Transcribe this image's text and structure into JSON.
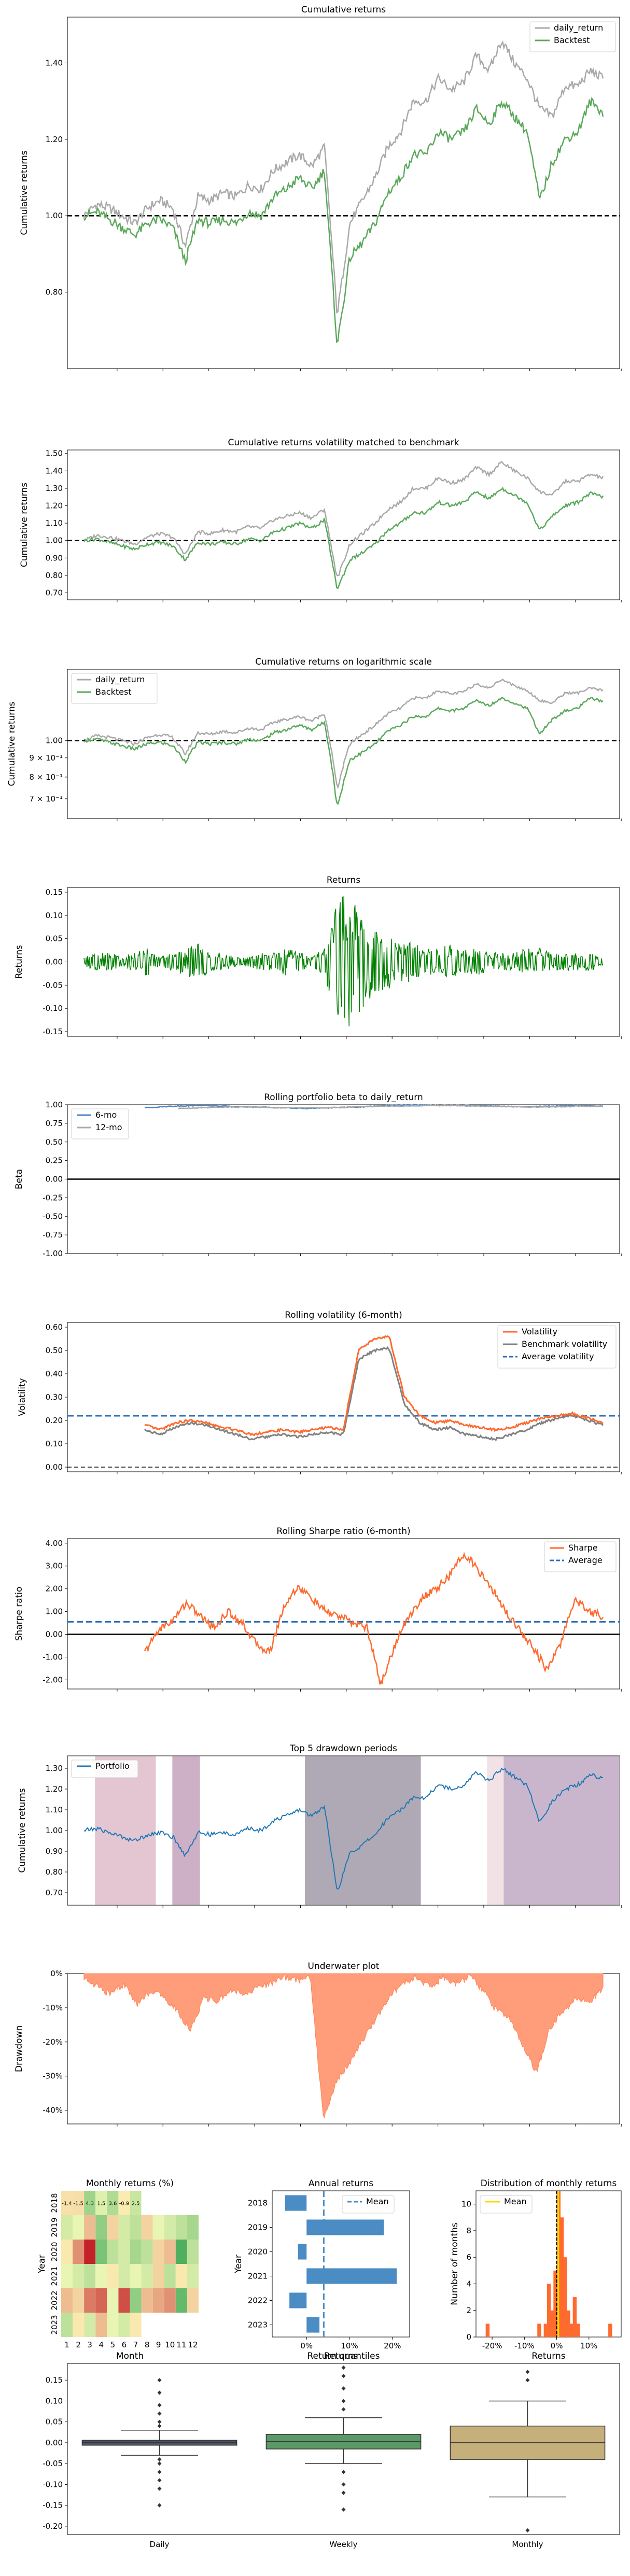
{
  "chart_data": [
    {
      "type": "line",
      "title": "Cumulative returns",
      "ylabel": "Cumulative returns",
      "yticks": [
        "0.80",
        "1.00",
        "1.20",
        "1.40"
      ],
      "ylim": [
        0.6,
        1.52
      ],
      "refline": 1.0,
      "legend_position": "top-right",
      "series": [
        {
          "name": "daily_return",
          "color": "#a9a9a9",
          "values": [
            1.0,
            1.03,
            1.02,
            1.0,
            0.98,
            1.02,
            1.04,
            1.02,
            0.92,
            1.05,
            1.04,
            1.06,
            1.05,
            1.08,
            1.07,
            1.12,
            1.14,
            1.16,
            1.13,
            1.18,
            0.74,
            0.98,
            1.04,
            1.1,
            1.18,
            1.22,
            1.3,
            1.3,
            1.36,
            1.33,
            1.35,
            1.42,
            1.38,
            1.46,
            1.4,
            1.36,
            1.28,
            1.26,
            1.34,
            1.34,
            1.38,
            1.36
          ]
        },
        {
          "name": "Backtest",
          "color": "#5aa95a",
          "values": [
            1.0,
            1.01,
            0.99,
            0.97,
            0.95,
            0.98,
            0.99,
            0.97,
            0.88,
            0.99,
            0.98,
            0.99,
            0.98,
            1.01,
            1.0,
            1.05,
            1.07,
            1.1,
            1.07,
            1.12,
            0.66,
            0.89,
            0.93,
            0.98,
            1.06,
            1.1,
            1.16,
            1.16,
            1.22,
            1.2,
            1.22,
            1.28,
            1.24,
            1.3,
            1.26,
            1.22,
            1.04,
            1.14,
            1.2,
            1.22,
            1.3,
            1.27
          ]
        }
      ]
    },
    {
      "type": "line",
      "title": "Cumulative returns volatility matched to benchmark",
      "ylabel": "Cumulative returns",
      "yticks": [
        "0.70",
        "0.80",
        "0.90",
        "1.00",
        "1.10",
        "1.20",
        "1.30",
        "1.40",
        "1.50"
      ],
      "ylim": [
        0.66,
        1.52
      ],
      "refline": 1.0,
      "series": [
        {
          "name": "daily_return",
          "color": "#a9a9a9",
          "values": [
            1.0,
            1.03,
            1.02,
            1.0,
            0.98,
            1.02,
            1.04,
            1.02,
            0.92,
            1.05,
            1.04,
            1.06,
            1.05,
            1.08,
            1.07,
            1.12,
            1.14,
            1.16,
            1.13,
            1.18,
            0.78,
            0.98,
            1.04,
            1.1,
            1.18,
            1.22,
            1.3,
            1.3,
            1.36,
            1.33,
            1.35,
            1.42,
            1.38,
            1.45,
            1.4,
            1.36,
            1.28,
            1.26,
            1.34,
            1.34,
            1.38,
            1.36
          ]
        },
        {
          "name": "Backtest",
          "color": "#5aa95a",
          "values": [
            1.0,
            1.01,
            0.99,
            0.97,
            0.95,
            0.98,
            0.99,
            0.97,
            0.89,
            0.99,
            0.98,
            0.99,
            0.98,
            1.01,
            1.0,
            1.05,
            1.07,
            1.1,
            1.07,
            1.12,
            0.72,
            0.89,
            0.93,
            0.98,
            1.06,
            1.1,
            1.16,
            1.16,
            1.22,
            1.2,
            1.22,
            1.28,
            1.24,
            1.3,
            1.26,
            1.22,
            1.06,
            1.14,
            1.2,
            1.22,
            1.27,
            1.25
          ]
        }
      ]
    },
    {
      "type": "line",
      "title": "Cumulative returns on logarithmic scale",
      "ylabel": "Cumulative returns",
      "yticks": [
        "1.00",
        "9 × 10⁻¹",
        "8 × 10⁻¹",
        "7 × 10⁻¹"
      ],
      "yscale": "log",
      "ylim": [
        0.62,
        1.55
      ],
      "refline": 1.0,
      "legend_position": "top-left",
      "series": [
        {
          "name": "daily_return",
          "color": "#a9a9a9",
          "values": [
            1.0,
            1.03,
            1.02,
            1.0,
            0.98,
            1.02,
            1.04,
            1.02,
            0.92,
            1.05,
            1.04,
            1.06,
            1.05,
            1.08,
            1.07,
            1.12,
            1.14,
            1.16,
            1.13,
            1.18,
            0.74,
            0.98,
            1.04,
            1.1,
            1.18,
            1.22,
            1.3,
            1.3,
            1.36,
            1.33,
            1.35,
            1.42,
            1.38,
            1.46,
            1.4,
            1.36,
            1.28,
            1.26,
            1.34,
            1.34,
            1.38,
            1.36
          ]
        },
        {
          "name": "Backtest",
          "color": "#5aa95a",
          "values": [
            1.0,
            1.01,
            0.99,
            0.97,
            0.95,
            0.98,
            0.99,
            0.97,
            0.88,
            0.99,
            0.98,
            0.99,
            0.98,
            1.01,
            1.0,
            1.05,
            1.07,
            1.1,
            1.07,
            1.12,
            0.66,
            0.89,
            0.93,
            0.98,
            1.06,
            1.1,
            1.16,
            1.16,
            1.22,
            1.2,
            1.22,
            1.28,
            1.24,
            1.3,
            1.26,
            1.22,
            1.04,
            1.14,
            1.2,
            1.22,
            1.3,
            1.27
          ]
        }
      ]
    },
    {
      "type": "line",
      "title": "Returns",
      "ylabel": "Returns",
      "yticks": [
        "0.15",
        "0.10",
        "0.05",
        "0.00",
        "-0.05",
        "-0.10",
        "-0.15"
      ],
      "ylim": [
        -0.16,
        0.16
      ],
      "series": [
        {
          "name": "Returns",
          "color": "#008000",
          "values": [
            0.01,
            -0.02,
            0.02,
            -0.01,
            0.02,
            -0.03,
            0.01,
            -0.02,
            0.03,
            -0.04,
            0.02,
            -0.02,
            0.01,
            -0.01,
            0.02,
            -0.02,
            0.03,
            -0.02,
            0.01,
            -0.03,
            0.14,
            -0.15,
            0.1,
            -0.08,
            0.06,
            -0.05,
            0.04,
            -0.03,
            0.03,
            -0.04,
            0.03,
            -0.03,
            0.02,
            -0.02,
            0.02,
            -0.03,
            0.03,
            -0.02,
            0.02,
            -0.02,
            0.02,
            -0.01
          ]
        }
      ]
    },
    {
      "type": "line",
      "title": "Rolling portfolio beta to daily_return",
      "ylabel": "Beta",
      "yticks": [
        "1.00",
        "0.75",
        "0.50",
        "0.25",
        "0.00",
        "-0.25",
        "-0.50",
        "-0.75",
        "-1.00"
      ],
      "ylim": [
        -1.0,
        1.0
      ],
      "refline": 0.0,
      "legend_position": "top-left",
      "series": [
        {
          "name": "6-mo",
          "color": "#4c86c5",
          "values": [
            0.96,
            0.98,
            0.99,
            0.98,
            0.97,
            0.96,
            0.95,
            0.96,
            0.97,
            0.99,
            1.0,
            0.99,
            0.99,
            0.98,
            0.97,
            0.98,
            0.99,
            0.98
          ]
        },
        {
          "name": "12-mo",
          "color": "#a9a9a9",
          "values": [
            0.95,
            0.96,
            0.97,
            0.97,
            0.96,
            0.96,
            0.96,
            0.97,
            0.98,
            0.98,
            0.99,
            0.99,
            0.98,
            0.98,
            0.97,
            0.97,
            0.98,
            0.98
          ]
        }
      ]
    },
    {
      "type": "line",
      "title": "Rolling volatility (6-month)",
      "ylabel": "Volatility",
      "yticks": [
        "0.60",
        "0.50",
        "0.40",
        "0.30",
        "0.20",
        "0.10",
        "0.00"
      ],
      "ylim": [
        -0.02,
        0.62
      ],
      "legend_position": "top-right",
      "average": 0.22,
      "series": [
        {
          "name": "Volatility",
          "color": "#ff6a2e",
          "values": [
            0.18,
            0.16,
            0.19,
            0.2,
            0.19,
            0.17,
            0.16,
            0.14,
            0.15,
            0.16,
            0.15,
            0.16,
            0.17,
            0.16,
            0.5,
            0.55,
            0.56,
            0.3,
            0.22,
            0.19,
            0.2,
            0.18,
            0.17,
            0.16,
            0.17,
            0.19,
            0.21,
            0.22,
            0.23,
            0.21,
            0.19
          ]
        },
        {
          "name": "Benchmark volatility",
          "color": "#808080",
          "values": [
            0.16,
            0.14,
            0.17,
            0.19,
            0.18,
            0.16,
            0.14,
            0.12,
            0.13,
            0.14,
            0.13,
            0.14,
            0.15,
            0.14,
            0.46,
            0.5,
            0.51,
            0.27,
            0.19,
            0.16,
            0.17,
            0.14,
            0.13,
            0.12,
            0.14,
            0.16,
            0.19,
            0.21,
            0.22,
            0.2,
            0.18
          ]
        }
      ],
      "average_label": "Average volatility"
    },
    {
      "type": "line",
      "title": "Rolling Sharpe ratio (6-month)",
      "ylabel": "Sharpe ratio",
      "yticks": [
        "4.00",
        "3.00",
        "2.00",
        "1.00",
        "0.00",
        "-1.00",
        "-2.00"
      ],
      "ylim": [
        -2.4,
        4.2
      ],
      "refline": 0.0,
      "legend_position": "top-right",
      "average": 0.55,
      "series": [
        {
          "name": "Sharpe",
          "color": "#ff6a2e",
          "values": [
            -0.8,
            0.2,
            0.6,
            1.4,
            0.8,
            0.3,
            1.0,
            0.5,
            -0.4,
            -0.8,
            1.2,
            2.1,
            1.6,
            1.0,
            0.8,
            0.5,
            0.3,
            -2.2,
            -0.5,
            0.8,
            1.6,
            2.0,
            2.6,
            3.6,
            2.8,
            2.0,
            1.0,
            0.2,
            -0.6,
            -1.6,
            -0.3,
            1.6,
            1.0,
            0.8
          ]
        }
      ],
      "average_label": "Average"
    },
    {
      "type": "line",
      "title": "Top 5 drawdown periods",
      "ylabel": "Cumulative returns",
      "yticks": [
        "1.30",
        "1.20",
        "1.10",
        "1.00",
        "0.90",
        "0.80",
        "0.70"
      ],
      "ylim": [
        0.64,
        1.36
      ],
      "legend_position": "top-left",
      "series": [
        {
          "name": "Portfolio",
          "color": "#1f77b4",
          "values": [
            1.0,
            1.01,
            0.99,
            0.97,
            0.95,
            0.98,
            0.99,
            0.97,
            0.88,
            0.99,
            0.98,
            0.99,
            0.98,
            1.01,
            1.0,
            1.05,
            1.07,
            1.1,
            1.07,
            1.12,
            0.7,
            0.89,
            0.93,
            0.98,
            1.06,
            1.1,
            1.16,
            1.16,
            1.22,
            1.2,
            1.22,
            1.28,
            1.24,
            1.3,
            1.26,
            1.22,
            1.04,
            1.14,
            1.2,
            1.22,
            1.27,
            1.25
          ]
        }
      ],
      "drawdown_bands": [
        {
          "start": 0.05,
          "end": 0.16,
          "color": "#dfbcca"
        },
        {
          "start": 0.19,
          "end": 0.24,
          "color": "#c4a2bb"
        },
        {
          "start": 0.43,
          "end": 0.64,
          "color": "#a19aa8"
        },
        {
          "start": 0.76,
          "end": 0.79,
          "color": "#f0dde0"
        },
        {
          "start": 0.79,
          "end": 1.0,
          "color": "#c0a9c3"
        }
      ]
    },
    {
      "type": "area",
      "title": "Underwater plot",
      "ylabel": "Drawdown",
      "yticks": [
        "0%",
        "-10%",
        "-20%",
        "-30%",
        "-40%"
      ],
      "ylim": [
        -0.44,
        0.0
      ],
      "series": [
        {
          "name": "Drawdown",
          "color": "#ff9d7a",
          "values": [
            0,
            -0.03,
            -0.05,
            -0.02,
            -0.08,
            -0.04,
            -0.06,
            -0.1,
            -0.16,
            -0.06,
            -0.07,
            -0.04,
            -0.05,
            -0.03,
            -0.02,
            0,
            -0.01,
            0,
            -0.42,
            -0.3,
            -0.25,
            -0.18,
            -0.12,
            -0.05,
            -0.02,
            0,
            -0.03,
            0,
            -0.02,
            0,
            -0.04,
            -0.1,
            -0.12,
            -0.2,
            -0.28,
            -0.15,
            -0.1,
            -0.06,
            -0.08,
            -0.03
          ]
        }
      ]
    },
    {
      "type": "heatmap",
      "title": "Monthly returns (%)",
      "xlabel": "Month",
      "ylabel": "Year",
      "xticks": [
        "1",
        "2",
        "3",
        "4",
        "5",
        "6",
        "7",
        "8",
        "9",
        "10",
        "11",
        "12"
      ],
      "yticks": [
        "2018",
        "2019",
        "2020",
        "2021",
        "2022",
        "2023"
      ],
      "first_row_values": [
        "-1.4",
        "-1.5",
        "4.3",
        "1.5",
        "3.6",
        "-0.9",
        "2.5"
      ],
      "values": [
        [
          -1.4,
          -1.5,
          4.3,
          1.5,
          3.6,
          -0.9,
          2.5,
          null,
          null,
          null,
          null,
          null
        ],
        [
          2,
          1,
          -3,
          5,
          -2,
          2,
          3,
          -2,
          1,
          2,
          3,
          4
        ],
        [
          -1,
          -5,
          -12,
          6,
          3,
          2,
          4,
          3,
          -2,
          -3,
          8,
          3
        ],
        [
          1,
          2,
          3,
          1,
          -1,
          2,
          1,
          2,
          -2,
          3,
          -1,
          2
        ],
        [
          -3,
          -2,
          -6,
          -7,
          1,
          -8,
          5,
          -3,
          -4,
          -5,
          7,
          -2
        ],
        [
          3,
          -1,
          2,
          -3,
          1,
          2,
          -1,
          null,
          null,
          null,
          null,
          null
        ]
      ]
    },
    {
      "type": "bar",
      "title": "Annual returns",
      "xlabel": "Returns",
      "ylabel": "Year",
      "categories": [
        "2018",
        "2019",
        "2020",
        "2021",
        "2022",
        "2023"
      ],
      "values": [
        -0.05,
        0.18,
        -0.02,
        0.21,
        -0.04,
        0.03
      ],
      "xticks": [
        "0%",
        "10%",
        "20%"
      ],
      "xlim": [
        -0.08,
        0.24
      ],
      "mean": 0.04,
      "mean_label": "Mean"
    },
    {
      "type": "bar",
      "title": "Distribution of monthly returns",
      "xlabel": "Returns",
      "ylabel": "Number of months",
      "xticks": [
        "-20%",
        "-10%",
        "0%",
        "10%"
      ],
      "yticks": [
        "0",
        "2",
        "4",
        "6",
        "8",
        "10"
      ],
      "xlim": [
        -0.25,
        0.2
      ],
      "ylim": [
        0,
        11
      ],
      "bins": [
        -0.22,
        -0.06,
        -0.04,
        -0.03,
        -0.02,
        -0.01,
        0.0,
        0.01,
        0.02,
        0.03,
        0.04,
        0.05,
        0.06,
        0.16
      ],
      "values": [
        1,
        1,
        1,
        4,
        2,
        5,
        11,
        9,
        6,
        2,
        1,
        3,
        1,
        1
      ],
      "mean": 0.005,
      "mean_label": "Mean"
    },
    {
      "type": "box",
      "title": "Return quantiles",
      "categories": [
        "Daily",
        "Weekly",
        "Monthly"
      ],
      "colors": [
        "#4c5563",
        "#5b9a67",
        "#c5b07c"
      ],
      "yticks": [
        "0.15",
        "0.10",
        "0.05",
        "0.00",
        "-0.05",
        "-0.10",
        "-0.15",
        "-0.20"
      ],
      "ylim": [
        -0.22,
        0.19
      ],
      "boxes": [
        {
          "q1": -0.006,
          "q3": 0.006,
          "low": -0.03,
          "high": 0.03
        },
        {
          "q1": -0.015,
          "q3": 0.02,
          "low": -0.05,
          "high": 0.06
        },
        {
          "q1": -0.04,
          "q3": 0.04,
          "low": -0.13,
          "high": 0.1
        }
      ]
    }
  ]
}
